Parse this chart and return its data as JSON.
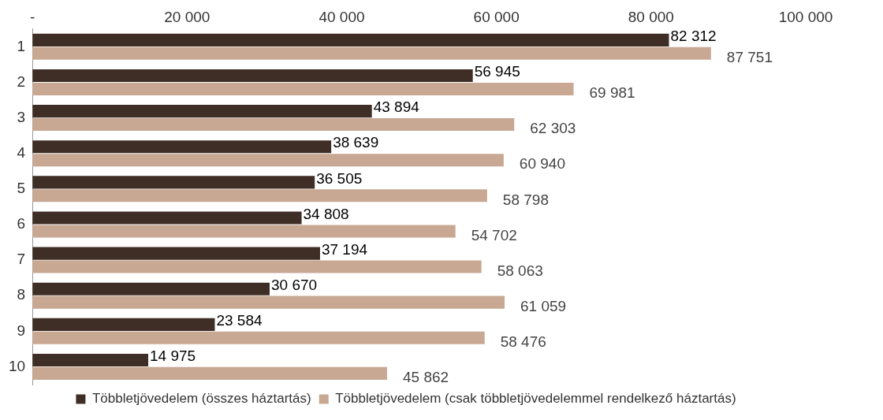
{
  "chart_data": {
    "type": "bar",
    "orientation": "horizontal",
    "categories": [
      "1",
      "2",
      "3",
      "4",
      "5",
      "6",
      "7",
      "8",
      "9",
      "10"
    ],
    "series": [
      {
        "name": "Többletjövedelem (összes háztartás)",
        "color": "#3f2e26",
        "values": [
          82312,
          56945,
          43894,
          38639,
          36505,
          34808,
          37194,
          30670,
          23584,
          14975
        ],
        "value_labels": [
          "82 312",
          "56 945",
          "43 894",
          "38 639",
          "36 505",
          "34 808",
          "37 194",
          "30 670",
          "23 584",
          "14 975"
        ]
      },
      {
        "name": "Többletjövedelem (csak többletjövedelemmel rendelkező háztartás)",
        "color": "#c8a893",
        "values": [
          87751,
          69981,
          62303,
          60940,
          58798,
          54702,
          58063,
          61059,
          58476,
          45862
        ],
        "value_labels": [
          "87 751",
          "69 981",
          "62 303",
          "60 940",
          "58 798",
          "54 702",
          "58 063",
          "61 059",
          "58 476",
          "45 862"
        ]
      }
    ],
    "xlim": [
      0,
      100000
    ],
    "xticks": [
      {
        "value": 0,
        "label": "-"
      },
      {
        "value": 20000,
        "label": "20 000"
      },
      {
        "value": 40000,
        "label": "40 000"
      },
      {
        "value": 60000,
        "label": "60 000"
      },
      {
        "value": 80000,
        "label": "80 000"
      },
      {
        "value": 100000,
        "label": "100 000"
      }
    ],
    "grid": false,
    "legend": "bottom"
  }
}
